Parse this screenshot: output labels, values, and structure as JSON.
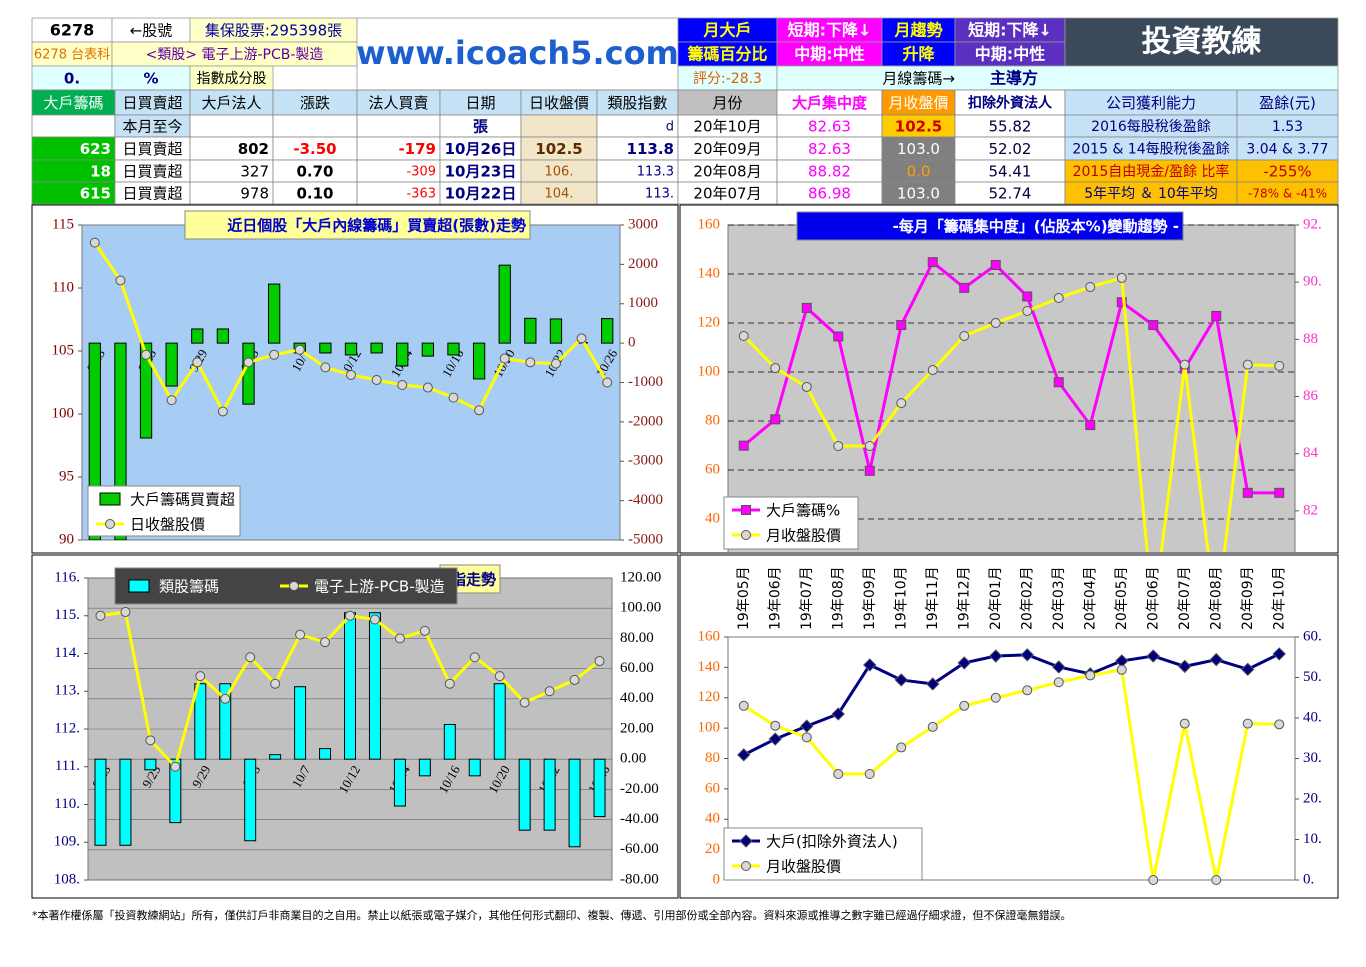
{
  "header": {
    "stock_code": "6278",
    "code_label": "←股號",
    "custody": "集保股票:295398張",
    "name": "6278 台表科",
    "sector": "<類股> 電子上游-PCB-製造",
    "ratio": "0.",
    "ratio_unit": "%",
    "index_member": "指數成分股",
    "site": "www.icoach5.com",
    "monthly_big_holder": [
      "月大戶",
      "籌碼百分比"
    ],
    "short_term_1": "短期:下降↓",
    "mid_term_1": "中期:中性",
    "monthly_trend": [
      "月趨勢",
      "升降"
    ],
    "short_term_2": "短期:下降↓",
    "mid_term_2": "中期:中性",
    "logo": "投資教練",
    "score": "評分:-28.3",
    "monthly_lead": "月線籌碼→",
    "lead_party": "主導方"
  },
  "table": {
    "header": [
      "大戶籌碼",
      "日買賣超",
      "大戶法人",
      "漲跌",
      "法人買賣",
      "日期",
      "日收盤價",
      "類股指數",
      "月份",
      "大戶集中度",
      "月收盤價",
      "扣除外資法人",
      "公司獲利能力",
      "盈餘(元)"
    ],
    "rows": [
      [
        null,
        "本月至今",
        null,
        null,
        null,
        "張",
        null,
        "d",
        "20年10月",
        "82.63",
        "102.5",
        "55.82",
        "2016每股稅後盈餘",
        "1.53"
      ],
      [
        "623",
        "日買賣超",
        "802",
        "-3.50",
        "-179",
        "10月26日",
        "102.5",
        "113.8",
        "20年09月",
        "82.63",
        "103.0",
        "52.02",
        "2015 & 14每股稅後盈餘",
        "3.04 & 3.77"
      ],
      [
        "18",
        "日買賣超",
        "327",
        "0.70",
        "-309",
        "10月23日",
        "106.",
        "113.3",
        "20年08月",
        "88.82",
        "0.0",
        "54.41",
        "2015自由現金/盈餘 比率",
        "-255%"
      ],
      [
        "615",
        "日買賣超",
        "978",
        "0.10",
        "-363",
        "10月22日",
        "104.",
        "113.",
        "20年07月",
        "86.98",
        "103.0",
        "52.74",
        "5年平均 ＆ 10年平均",
        "-78% & -41%"
      ]
    ]
  },
  "chart_data": [
    {
      "type": "combo",
      "title": "近日個股「大戶內線籌碼」買賣超(張數)走勢",
      "categories": [
        "9/23",
        null,
        "9/25",
        null,
        "9/29",
        null,
        "10/5",
        null,
        "10/7",
        null,
        "10/12",
        null,
        "10/14",
        null,
        "10/16",
        null,
        "10/20",
        null,
        "10/22",
        null,
        "10/26"
      ],
      "series": [
        {
          "name": "大戶籌碼買賣超",
          "type": "bar",
          "axis": "y2",
          "color": "#00cc00",
          "values": [
            -5000,
            -5000,
            -2410,
            -1090,
            360,
            360,
            -1550,
            1500,
            -250,
            -250,
            -300,
            -250,
            -580,
            -330,
            -300,
            -910,
            1980,
            630,
            615,
            18,
            623
          ]
        },
        {
          "name": "日收盤股價",
          "type": "line",
          "axis": "y",
          "color": "#ffff00",
          "marker": "circle",
          "values": [
            113.6,
            110.6,
            104.7,
            101.1,
            104.1,
            100.2,
            104.1,
            104.7,
            105.1,
            103.7,
            103.1,
            102.7,
            102.3,
            102.1,
            101.3,
            100.3,
            104.4,
            104.1,
            104,
            106,
            102.5
          ]
        }
      ],
      "ylim": [
        90,
        115
      ],
      "yticks": [
        90,
        95,
        100,
        105,
        110,
        115
      ],
      "y2lim": [
        -5000,
        3000
      ],
      "y2ticks": [
        -5000,
        -4000,
        -3000,
        -2000,
        -1000,
        0,
        1000,
        2000,
        3000
      ],
      "grid": false
    },
    {
      "type": "combo",
      "title": "-每月「籌碼集中度」(佔股本%)變動趨勢 -",
      "series": [
        {
          "name": "大戶籌碼%",
          "type": "line",
          "axis": "y2",
          "color": "#ff00ff",
          "marker": "square",
          "values": [
            84.28,
            85.2,
            89.1,
            88.1,
            83.4,
            88.5,
            90.7,
            89.8,
            90.6,
            89.5,
            86.5,
            85.0,
            89.3,
            88.5,
            86.98,
            88.82,
            82.63,
            82.63
          ]
        },
        {
          "name": "月收盤股價",
          "type": "line",
          "axis": "y",
          "color": "#ffff00",
          "marker": "circle",
          "values": [
            114.7,
            101.6,
            93.9,
            69.8,
            69.8,
            87.3,
            100.8,
            114.7,
            120,
            124.9,
            130.2,
            134.7,
            138.4,
            0,
            103.0,
            0.0,
            103.0,
            102.5
          ]
        }
      ],
      "ylim": [
        20,
        160
      ],
      "yticks": [
        40,
        60,
        80,
        100,
        120,
        140,
        160
      ],
      "y2lim": [
        80,
        92
      ],
      "y2ticks": [
        82,
        84,
        86,
        88,
        {
          "value": 90,
          "label": "90."
        },
        {
          "value": 92,
          "label": "92."
        }
      ],
      "grid": "y"
    },
    {
      "type": "combo",
      "title": "指走勢",
      "categories": [
        "9/23",
        null,
        "9/25",
        null,
        "9/29",
        null,
        "10/5",
        null,
        "10/7",
        null,
        "10/12",
        null,
        "10/14",
        null,
        "10/16",
        null,
        "10/20",
        null,
        "10/22",
        null,
        "10/26"
      ],
      "series": [
        {
          "name": "類股籌碼",
          "type": "bar",
          "axis": "y2",
          "color": "#00ffff",
          "values": [
            -57,
            -57,
            -7,
            -42,
            50,
            50,
            -54,
            3,
            48,
            7,
            97,
            97,
            -31,
            -11,
            23,
            -11,
            50,
            -47,
            -47,
            -58,
            -38
          ]
        },
        {
          "name": "電子上游-PCB-製造",
          "type": "line",
          "axis": "y",
          "color": "#ffff00",
          "marker": "circle",
          "values": [
            115.0,
            115.1,
            111.7,
            111.0,
            113.4,
            112.8,
            113.9,
            113.2,
            114.5,
            114.3,
            115.0,
            114.9,
            114.4,
            114.6,
            113.2,
            113.9,
            113.4,
            112.7,
            113.0,
            113.3,
            113.8
          ]
        }
      ],
      "ylim": [
        108,
        116
      ],
      "yticks": [
        {
          "value": 108,
          "label": "108."
        },
        {
          "value": 109,
          "label": "109."
        },
        {
          "value": 110,
          "label": "110."
        },
        {
          "value": 111,
          "label": "111."
        },
        {
          "value": 112,
          "label": "112."
        },
        {
          "value": 113,
          "label": "113."
        },
        {
          "value": 114,
          "label": "114."
        },
        {
          "value": 115,
          "label": "115."
        },
        {
          "value": 116,
          "label": "116."
        }
      ],
      "y2lim": [
        -80,
        120
      ],
      "y2ticks": [
        {
          "value": -80,
          "label": "-80.00"
        },
        {
          "value": -60,
          "label": "-60.00"
        },
        {
          "value": -40,
          "label": "-40.00"
        },
        {
          "value": -20,
          "label": "-20.00"
        },
        {
          "value": 0,
          "label": "0.00"
        },
        {
          "value": 20,
          "label": "20.00"
        },
        {
          "value": 40,
          "label": "40.00"
        },
        {
          "value": 60,
          "label": "60.00"
        },
        {
          "value": 80,
          "label": "80.00"
        },
        {
          "value": 100,
          "label": "100.00"
        },
        {
          "value": 120,
          "label": "120.00"
        }
      ],
      "grid": "y2"
    },
    {
      "type": "combo",
      "categories": [
        "19年05月",
        "19年06月",
        "19年07月",
        "19年08月",
        "19年09月",
        "19年10月",
        "19年11月",
        "19年12月",
        "20年01月",
        "20年02月",
        "20年03月",
        "20年04月",
        "20年05月",
        "20年06月",
        "20年07月",
        "20年08月",
        "20年09月",
        "20年10月"
      ],
      "series": [
        {
          "name": "大戶(扣除外資法人)",
          "type": "line",
          "axis": "y2",
          "color": "#000080",
          "marker": "diamond",
          "values": [
            30.9,
            34.8,
            38.0,
            41.0,
            53.1,
            49.4,
            48.4,
            53.6,
            55.3,
            55.6,
            52.6,
            50.9,
            54.1,
            55.3,
            52.74,
            54.41,
            52.02,
            55.82
          ]
        },
        {
          "name": "月收盤股價",
          "type": "line",
          "axis": "y",
          "color": "#ffff00",
          "marker": "circle",
          "values": [
            114.7,
            101.6,
            93.9,
            69.8,
            69.8,
            87.3,
            100.8,
            114.7,
            120,
            124.9,
            130.2,
            134.7,
            138.4,
            0,
            103.0,
            0.0,
            103.0,
            102.5
          ]
        }
      ],
      "ylim": [
        0,
        160
      ],
      "yticks": [
        0,
        20,
        40,
        60,
        80,
        100,
        120,
        140,
        160
      ],
      "y2lim": [
        0,
        60
      ],
      "y2ticks": [
        {
          "value": 0,
          "label": "0."
        },
        {
          "value": 10,
          "label": "10."
        },
        {
          "value": 20,
          "label": "20."
        },
        {
          "value": 30,
          "label": "30."
        },
        {
          "value": 40,
          "label": "40."
        },
        {
          "value": 50,
          "label": "50."
        },
        {
          "value": 60,
          "label": "60."
        }
      ],
      "grid": false
    }
  ],
  "footer": "*本著作權係屬「投資教練網站」所有，僅供訂戶非商業目的之自用。禁止以紙張或電子媒介，其他任何形式翻印、複製、傳遞、引用部份或全部內容。資料來源或推導之數字雖已經過仔細求證，但不保證毫無錯誤。"
}
